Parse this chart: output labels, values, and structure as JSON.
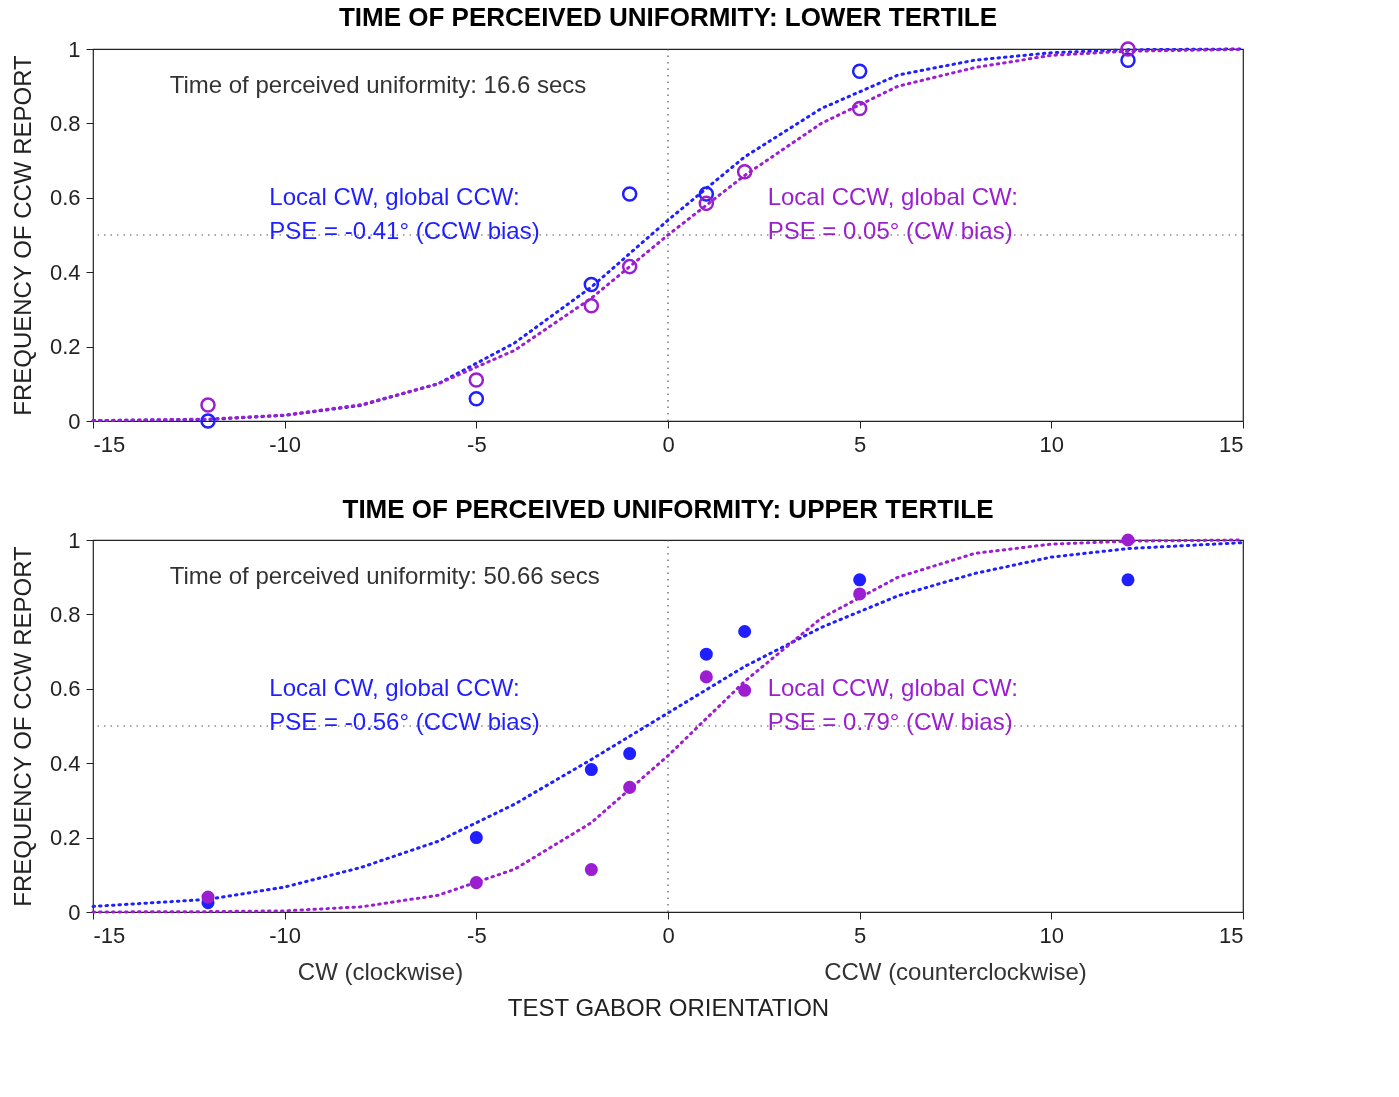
{
  "chart_data": [
    {
      "type": "scatter",
      "title": "TIME OF PERCEIVED UNIFORMITY: LOWER TERTILE",
      "ylabel": "FREQUENCY OF CCW REPORT",
      "xlim": [
        -15,
        15
      ],
      "xticks": [
        -15,
        -10,
        -5,
        0,
        5,
        10,
        15
      ],
      "ylim": [
        0,
        1
      ],
      "yticks": [
        0,
        0.2,
        0.4,
        0.6,
        0.8,
        1
      ],
      "grid": false,
      "annotations": [
        "Time of perceived uniformity: 16.6 secs",
        "Local CW, global CCW:\nPSE = -0.41° (CCW bias)",
        "Local CCW, global CW:\nPSE = 0.05° (CW bias)"
      ],
      "ref_lines": [
        {
          "axis": "y",
          "value": 0.5,
          "color": "#555555",
          "line_style": "dotted"
        },
        {
          "axis": "x",
          "value": 0,
          "color": "#555555",
          "line_style": "dotted"
        }
      ],
      "series": [
        {
          "type": "line",
          "color": "#1f1fff",
          "line_style": "dotted",
          "x": [
            -15,
            -12,
            -10,
            -8,
            -6,
            -4,
            -2,
            0,
            2,
            4,
            6,
            8,
            10,
            12,
            15
          ],
          "values": [
            0.001,
            0.004,
            0.015,
            0.042,
            0.1,
            0.21,
            0.36,
            0.54,
            0.71,
            0.84,
            0.93,
            0.97,
            0.99,
            0.998,
            1
          ]
        },
        {
          "type": "line",
          "color": "#9b1fd0",
          "line_style": "dotted",
          "x": [
            -15,
            -12,
            -10,
            -8,
            -6,
            -4,
            -2,
            0,
            2,
            4,
            6,
            8,
            10,
            12,
            15
          ],
          "values": [
            0.001,
            0.005,
            0.016,
            0.044,
            0.1,
            0.19,
            0.33,
            0.5,
            0.66,
            0.8,
            0.9,
            0.95,
            0.983,
            0.994,
            0.999
          ]
        },
        {
          "color": "#1f1fff",
          "marker": "circle",
          "x": [
            -12,
            -5,
            -2,
            -1,
            1,
            5,
            12
          ],
          "values": [
            0,
            0.06,
            0.367,
            0.61,
            0.61,
            0.94,
            0.97
          ]
        },
        {
          "color": "#9b1fd0",
          "marker": "circle",
          "x": [
            -12,
            -5,
            -2,
            -1,
            1,
            2,
            5,
            12
          ],
          "values": [
            0.043,
            0.11,
            0.31,
            0.415,
            0.585,
            0.67,
            0.84,
            1
          ]
        }
      ]
    },
    {
      "type": "scatter",
      "title": "TIME OF PERCEIVED UNIFORMITY: UPPER TERTILE",
      "ylabel": "FREQUENCY OF CCW REPORT",
      "xlabel": "TEST GABOR ORIENTATION",
      "xlim": [
        -15,
        15
      ],
      "xticks": [
        -15,
        -10,
        -5,
        0,
        5,
        10,
        15
      ],
      "ylim": [
        0,
        1
      ],
      "yticks": [
        0,
        0.2,
        0.4,
        0.6,
        0.8,
        1
      ],
      "grid": false,
      "annotations": [
        "Time of perceived uniformity: 50.66 secs",
        "Local CW, global CCW:\nPSE = -0.56° (CCW bias)",
        "Local CCW, global CW:\nPSE = 0.79° (CW bias)",
        "CW (clockwise)",
        "CCW (counterclockwise)"
      ],
      "ref_lines": [
        {
          "axis": "y",
          "value": 0.5,
          "color": "#555555",
          "line_style": "dotted"
        },
        {
          "axis": "x",
          "value": 0,
          "color": "#555555",
          "line_style": "dotted"
        }
      ],
      "series": [
        {
          "type": "line",
          "color": "#1f1fff",
          "line_style": "dotted",
          "x": [
            -15,
            -12,
            -10,
            -8,
            -6,
            -4,
            -2,
            0,
            2,
            4,
            6,
            8,
            10,
            12,
            15
          ],
          "values": [
            0.015,
            0.034,
            0.067,
            0.12,
            0.19,
            0.29,
            0.41,
            0.535,
            0.66,
            0.765,
            0.85,
            0.91,
            0.954,
            0.977,
            0.993
          ]
        },
        {
          "type": "line",
          "color": "#9b1fd0",
          "line_style": "dotted",
          "x": [
            -15,
            -12,
            -10,
            -8,
            -6,
            -4,
            -2,
            0,
            2,
            4,
            6,
            8,
            10,
            12,
            15
          ],
          "values": [
            0,
            0.001,
            0.003,
            0.014,
            0.045,
            0.115,
            0.24,
            0.42,
            0.62,
            0.79,
            0.9,
            0.964,
            0.989,
            0.997,
            1
          ]
        },
        {
          "color": "#1f1fff",
          "marker": "circle",
          "x": [
            -12,
            -5,
            -2,
            -1,
            1,
            2,
            5,
            12
          ],
          "values": [
            0.025,
            0.2,
            0.383,
            0.426,
            0.693,
            0.754,
            0.893,
            0.893
          ]
        },
        {
          "color": "#9b1fd0",
          "marker": "circle",
          "x": [
            -12,
            -5,
            -2,
            -1,
            1,
            2,
            5,
            12
          ],
          "values": [
            0.04,
            0.079,
            0.114,
            0.335,
            0.632,
            0.596,
            0.855,
            1
          ]
        }
      ]
    }
  ]
}
